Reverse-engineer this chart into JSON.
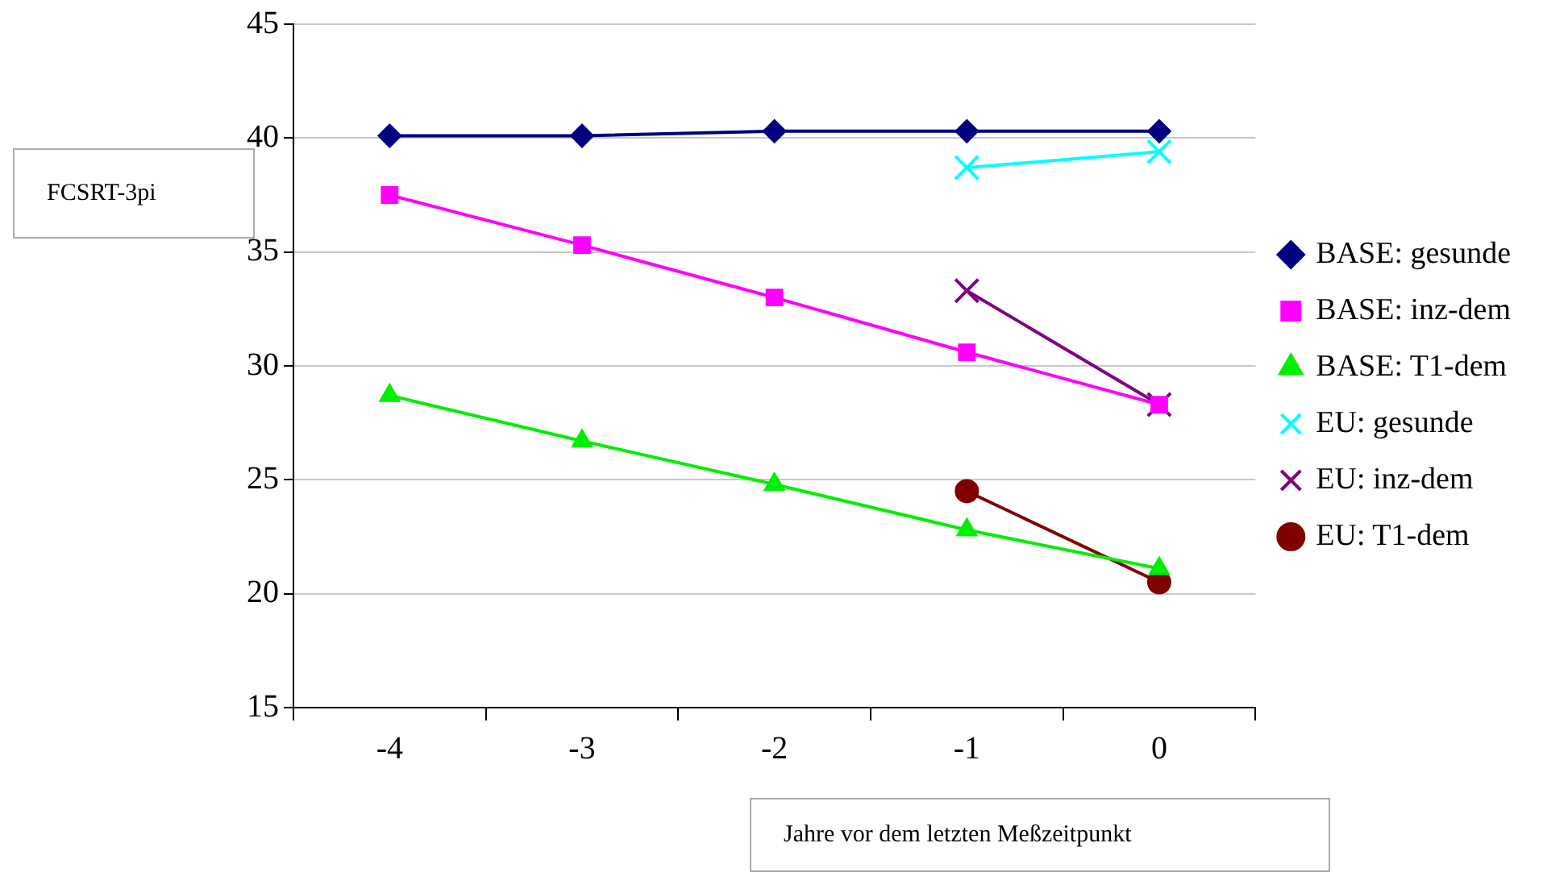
{
  "chart_data": {
    "type": "line",
    "xlabel": "Jahre vor dem letzten Meßzeitpunkt",
    "ylabel": "FCSRT-3pi",
    "categories": [
      "-4",
      "-3",
      "-2",
      "-1",
      "0"
    ],
    "ylim": [
      15,
      45
    ],
    "yticks": [
      15,
      20,
      25,
      30,
      35,
      40,
      45
    ],
    "grid": "y",
    "legend": "right",
    "series": [
      {
        "name": "BASE: gesunde",
        "color": "#000080",
        "marker": "diamond",
        "values": [
          40.1,
          40.1,
          40.3,
          40.3,
          40.3
        ]
      },
      {
        "name": "BASE: inz-dem",
        "color": "#ff00ff",
        "marker": "square",
        "values": [
          37.5,
          35.3,
          33.0,
          30.6,
          28.3
        ]
      },
      {
        "name": "BASE: T1-dem",
        "color": "#00ee00",
        "marker": "triangle",
        "values": [
          28.7,
          26.7,
          24.8,
          22.8,
          21.1
        ]
      },
      {
        "name": "EU: gesunde",
        "color": "#00ffff",
        "marker": "cross",
        "values": [
          null,
          null,
          null,
          38.7,
          39.4
        ]
      },
      {
        "name": "EU: inz-dem",
        "color": "#800080",
        "marker": "cross",
        "values": [
          null,
          null,
          null,
          33.3,
          28.3
        ]
      },
      {
        "name": "EU: T1-dem",
        "color": "#800000",
        "marker": "circle",
        "values": [
          null,
          null,
          null,
          24.5,
          20.5
        ]
      }
    ]
  }
}
